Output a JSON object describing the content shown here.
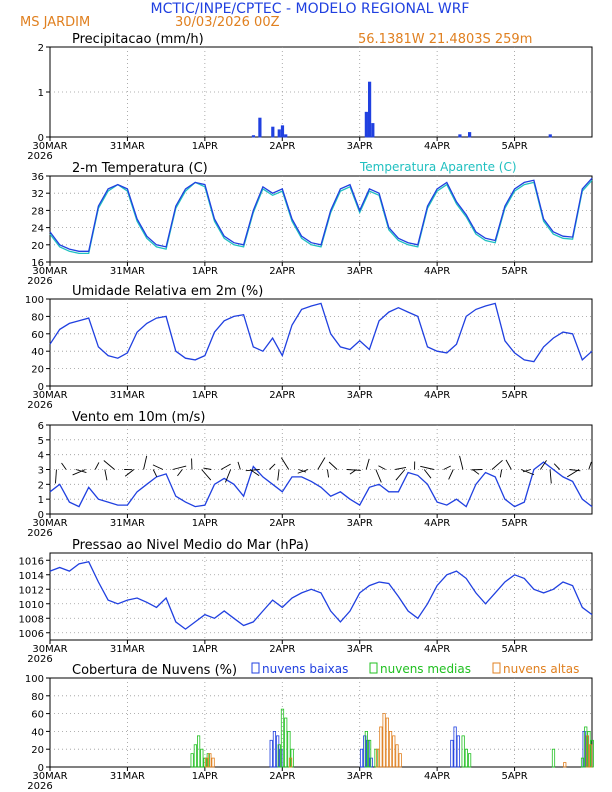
{
  "header": {
    "title": "MCTIC/INPE/CPTEC - MODELO REGIONAL WRF",
    "location": "MS JARDIM",
    "run": "30/03/2026 00Z",
    "coords": "56.1381W 21.4803S 259m"
  },
  "colors": {
    "blue": "#2040e0",
    "cyan": "#20c0c0",
    "orange": "#e08020",
    "green": "#20c020",
    "black": "#000000"
  },
  "day_labels": [
    "30MAR",
    "31MAR",
    "1APR",
    "2APR",
    "3APR",
    "4APR",
    "5APR"
  ],
  "year_label": "2026",
  "chart_data": [
    {
      "id": "precip",
      "type": "bar",
      "title": "Precipitacao (mm/h)",
      "ylim": [
        0,
        2
      ],
      "yticks": [
        0,
        1,
        2
      ],
      "x_unit": "hours since 30MAR 00Z",
      "series": [
        {
          "name": "precipitacao",
          "color": "#2040e0",
          "x": [
            63,
            65,
            69,
            71,
            72,
            73,
            98,
            99,
            100,
            127,
            130,
            155
          ],
          "values": [
            0.03,
            0.42,
            0.22,
            0.16,
            0.25,
            0.05,
            0.55,
            1.22,
            0.3,
            0.05,
            0.1,
            0.05
          ]
        }
      ]
    },
    {
      "id": "temp",
      "type": "line",
      "title": "2-m Temperatura (C)",
      "legend": "Temperatura Aparente (C)",
      "ylim": [
        16,
        36
      ],
      "yticks": [
        16,
        20,
        24,
        28,
        32,
        36
      ],
      "x_unit": "hours since 30MAR 00Z",
      "series": [
        {
          "name": "temperatura",
          "color": "#2040e0",
          "x": [
            0,
            3,
            6,
            9,
            12,
            15,
            18,
            21,
            24,
            27,
            30,
            33,
            36,
            39,
            42,
            45,
            48,
            51,
            54,
            57,
            60,
            63,
            66,
            69,
            72,
            75,
            78,
            81,
            84,
            87,
            90,
            93,
            96,
            99,
            102,
            105,
            108,
            111,
            114,
            117,
            120,
            123,
            126,
            129,
            132,
            135,
            138,
            141,
            144,
            147,
            150,
            153,
            156,
            159,
            162,
            165,
            168
          ],
          "values": [
            23,
            20,
            19,
            18.5,
            18.5,
            29,
            33,
            34,
            33,
            26,
            22,
            20,
            19.5,
            29,
            33,
            34.5,
            34,
            26,
            22,
            20.5,
            20,
            28,
            33.5,
            32,
            33,
            26,
            22,
            20.5,
            20,
            28,
            33,
            34,
            28,
            33,
            32,
            24,
            21.5,
            20.5,
            20,
            29,
            33,
            34.5,
            30,
            27,
            23,
            21.5,
            21,
            29,
            33,
            34.5,
            35,
            26,
            23,
            22,
            21.8,
            33,
            35.5
          ]
        },
        {
          "name": "temperatura aparente",
          "color": "#20c0c0",
          "x": [
            0,
            3,
            6,
            9,
            12,
            15,
            18,
            21,
            24,
            27,
            30,
            33,
            36,
            39,
            42,
            45,
            48,
            51,
            54,
            57,
            60,
            63,
            66,
            69,
            72,
            75,
            78,
            81,
            84,
            87,
            90,
            93,
            96,
            99,
            102,
            105,
            108,
            111,
            114,
            117,
            120,
            123,
            126,
            129,
            132,
            135,
            138,
            141,
            144,
            147,
            150,
            153,
            156,
            159,
            162,
            165,
            168
          ],
          "values": [
            22.5,
            19.5,
            18.5,
            18,
            18,
            28.5,
            32.5,
            34,
            32.5,
            25.5,
            21.5,
            19.5,
            19,
            28.5,
            32.5,
            34.5,
            33.5,
            25.5,
            21.5,
            20,
            19.5,
            27.5,
            33,
            31.5,
            32.5,
            25.5,
            21.5,
            20,
            19.5,
            27.5,
            32.5,
            33.5,
            27.5,
            32.5,
            31.5,
            23.5,
            21,
            20,
            19.5,
            28.5,
            32.5,
            34,
            29.5,
            26.5,
            22.5,
            21,
            20.5,
            28.5,
            32.5,
            34,
            34.5,
            25.5,
            22.5,
            21.5,
            21.3,
            32.5,
            35
          ]
        }
      ]
    },
    {
      "id": "rh",
      "type": "line",
      "title": "Umidade Relativa em 2m (%)",
      "ylim": [
        0,
        100
      ],
      "yticks": [
        0,
        20,
        40,
        60,
        80,
        100
      ],
      "x_unit": "hours since 30MAR 00Z",
      "series": [
        {
          "name": "umidade",
          "color": "#2040e0",
          "x": [
            0,
            3,
            6,
            9,
            12,
            15,
            18,
            21,
            24,
            27,
            30,
            33,
            36,
            39,
            42,
            45,
            48,
            51,
            54,
            57,
            60,
            63,
            66,
            69,
            72,
            75,
            78,
            81,
            84,
            87,
            90,
            93,
            96,
            99,
            102,
            105,
            108,
            111,
            114,
            117,
            120,
            123,
            126,
            129,
            132,
            135,
            138,
            141,
            144,
            147,
            150,
            153,
            156,
            159,
            162,
            165,
            168
          ],
          "values": [
            48,
            65,
            72,
            75,
            78,
            45,
            35,
            32,
            38,
            62,
            72,
            78,
            80,
            40,
            32,
            30,
            35,
            62,
            75,
            80,
            82,
            45,
            40,
            55,
            35,
            70,
            88,
            92,
            95,
            60,
            45,
            42,
            52,
            42,
            75,
            85,
            90,
            85,
            80,
            45,
            40,
            38,
            48,
            80,
            88,
            92,
            95,
            52,
            38,
            30,
            28,
            45,
            55,
            62,
            60,
            30,
            40
          ]
        }
      ]
    },
    {
      "id": "wind",
      "type": "line",
      "title": "Vento em 10m (m/s)",
      "ylim": [
        0,
        6
      ],
      "yticks": [
        0,
        1,
        2,
        3,
        4,
        5,
        6
      ],
      "x_unit": "hours since 30MAR 00Z",
      "series": [
        {
          "name": "velocidade",
          "color": "#2040e0",
          "x": [
            0,
            3,
            6,
            9,
            12,
            15,
            18,
            21,
            24,
            27,
            30,
            33,
            36,
            39,
            42,
            45,
            48,
            51,
            54,
            57,
            60,
            63,
            66,
            69,
            72,
            75,
            78,
            81,
            84,
            87,
            90,
            93,
            96,
            99,
            102,
            105,
            108,
            111,
            114,
            117,
            120,
            123,
            126,
            129,
            132,
            135,
            138,
            141,
            144,
            147,
            150,
            153,
            156,
            159,
            162,
            165,
            168
          ],
          "values": [
            1.5,
            2.0,
            0.8,
            0.5,
            1.8,
            1.0,
            0.8,
            0.6,
            0.6,
            1.5,
            2.0,
            2.5,
            2.7,
            1.2,
            0.8,
            0.5,
            0.6,
            2.0,
            2.4,
            2.0,
            1.2,
            3.2,
            2.5,
            2.0,
            1.5,
            2.5,
            2.5,
            2.2,
            1.8,
            1.2,
            1.5,
            1.0,
            0.6,
            1.8,
            2.0,
            1.5,
            1.5,
            2.8,
            2.6,
            2.0,
            0.8,
            0.6,
            1.0,
            0.5,
            2.0,
            2.8,
            2.5,
            1.0,
            0.5,
            0.8,
            3.0,
            3.5,
            3.0,
            2.5,
            2.2,
            1.0,
            0.5
          ]
        }
      ]
    },
    {
      "id": "pres",
      "type": "line",
      "title": "Pressao ao Nivel Medio do Mar (hPa)",
      "ylim": [
        1005,
        1017
      ],
      "yticks": [
        1006,
        1008,
        1010,
        1012,
        1014,
        1016
      ],
      "x_unit": "hours since 30MAR 00Z",
      "series": [
        {
          "name": "pressao",
          "color": "#2040e0",
          "x": [
            0,
            3,
            6,
            9,
            12,
            15,
            18,
            21,
            24,
            27,
            30,
            33,
            36,
            39,
            42,
            45,
            48,
            51,
            54,
            57,
            60,
            63,
            66,
            69,
            72,
            75,
            78,
            81,
            84,
            87,
            90,
            93,
            96,
            99,
            102,
            105,
            108,
            111,
            114,
            117,
            120,
            123,
            126,
            129,
            132,
            135,
            138,
            141,
            144,
            147,
            150,
            153,
            156,
            159,
            162,
            165,
            168
          ],
          "values": [
            1014.5,
            1015,
            1014.5,
            1015.5,
            1015.8,
            1013,
            1010.5,
            1010.0,
            1010.5,
            1010.8,
            1010.2,
            1009.5,
            1010.8,
            1007.5,
            1006.5,
            1007.5,
            1008.5,
            1008.0,
            1009.0,
            1008.0,
            1007.0,
            1007.5,
            1009.0,
            1010.5,
            1009.5,
            1010.8,
            1011.5,
            1012.0,
            1011.5,
            1009.0,
            1007.5,
            1009.0,
            1011.5,
            1012.5,
            1013.0,
            1012.8,
            1011.0,
            1009.0,
            1008.0,
            1010.0,
            1012.5,
            1014.0,
            1014.5,
            1013.5,
            1011.5,
            1010.0,
            1011.5,
            1013.0,
            1014.0,
            1013.5,
            1012.0,
            1011.5,
            1012.0,
            1013.0,
            1012.5,
            1009.5,
            1008.5
          ]
        }
      ]
    },
    {
      "id": "cloud",
      "type": "bar",
      "title": "Cobertura de Nuvens (%)",
      "ylim": [
        0,
        100
      ],
      "yticks": [
        0,
        20,
        40,
        60,
        80,
        100
      ],
      "x_unit": "hours since 30MAR 00Z",
      "series": [
        {
          "name": "nuvens baixas",
          "color": "#2040e0",
          "x": [
            69,
            70,
            71,
            72,
            97,
            98,
            99,
            100,
            125,
            126,
            127,
            166,
            167
          ],
          "values": [
            30,
            40,
            35,
            20,
            20,
            35,
            30,
            10,
            30,
            45,
            35,
            40,
            35
          ]
        },
        {
          "name": "nuvens medias",
          "color": "#20c020",
          "x": [
            44,
            45,
            46,
            47,
            48,
            49,
            71,
            72,
            73,
            74,
            75,
            98,
            99,
            101,
            128,
            129,
            130,
            156,
            165,
            166,
            167,
            168
          ],
          "values": [
            15,
            25,
            35,
            20,
            10,
            15,
            25,
            65,
            55,
            40,
            20,
            40,
            30,
            20,
            35,
            20,
            15,
            20,
            10,
            45,
            40,
            30
          ]
        },
        {
          "name": "nuvens altas",
          "color": "#e08020",
          "x": [
            48,
            49,
            50,
            74,
            101,
            102,
            103,
            104,
            105,
            106,
            107,
            108,
            159,
            166,
            167
          ],
          "values": [
            10,
            15,
            10,
            10,
            20,
            45,
            60,
            55,
            40,
            35,
            25,
            15,
            5,
            35,
            25
          ]
        }
      ]
    }
  ]
}
